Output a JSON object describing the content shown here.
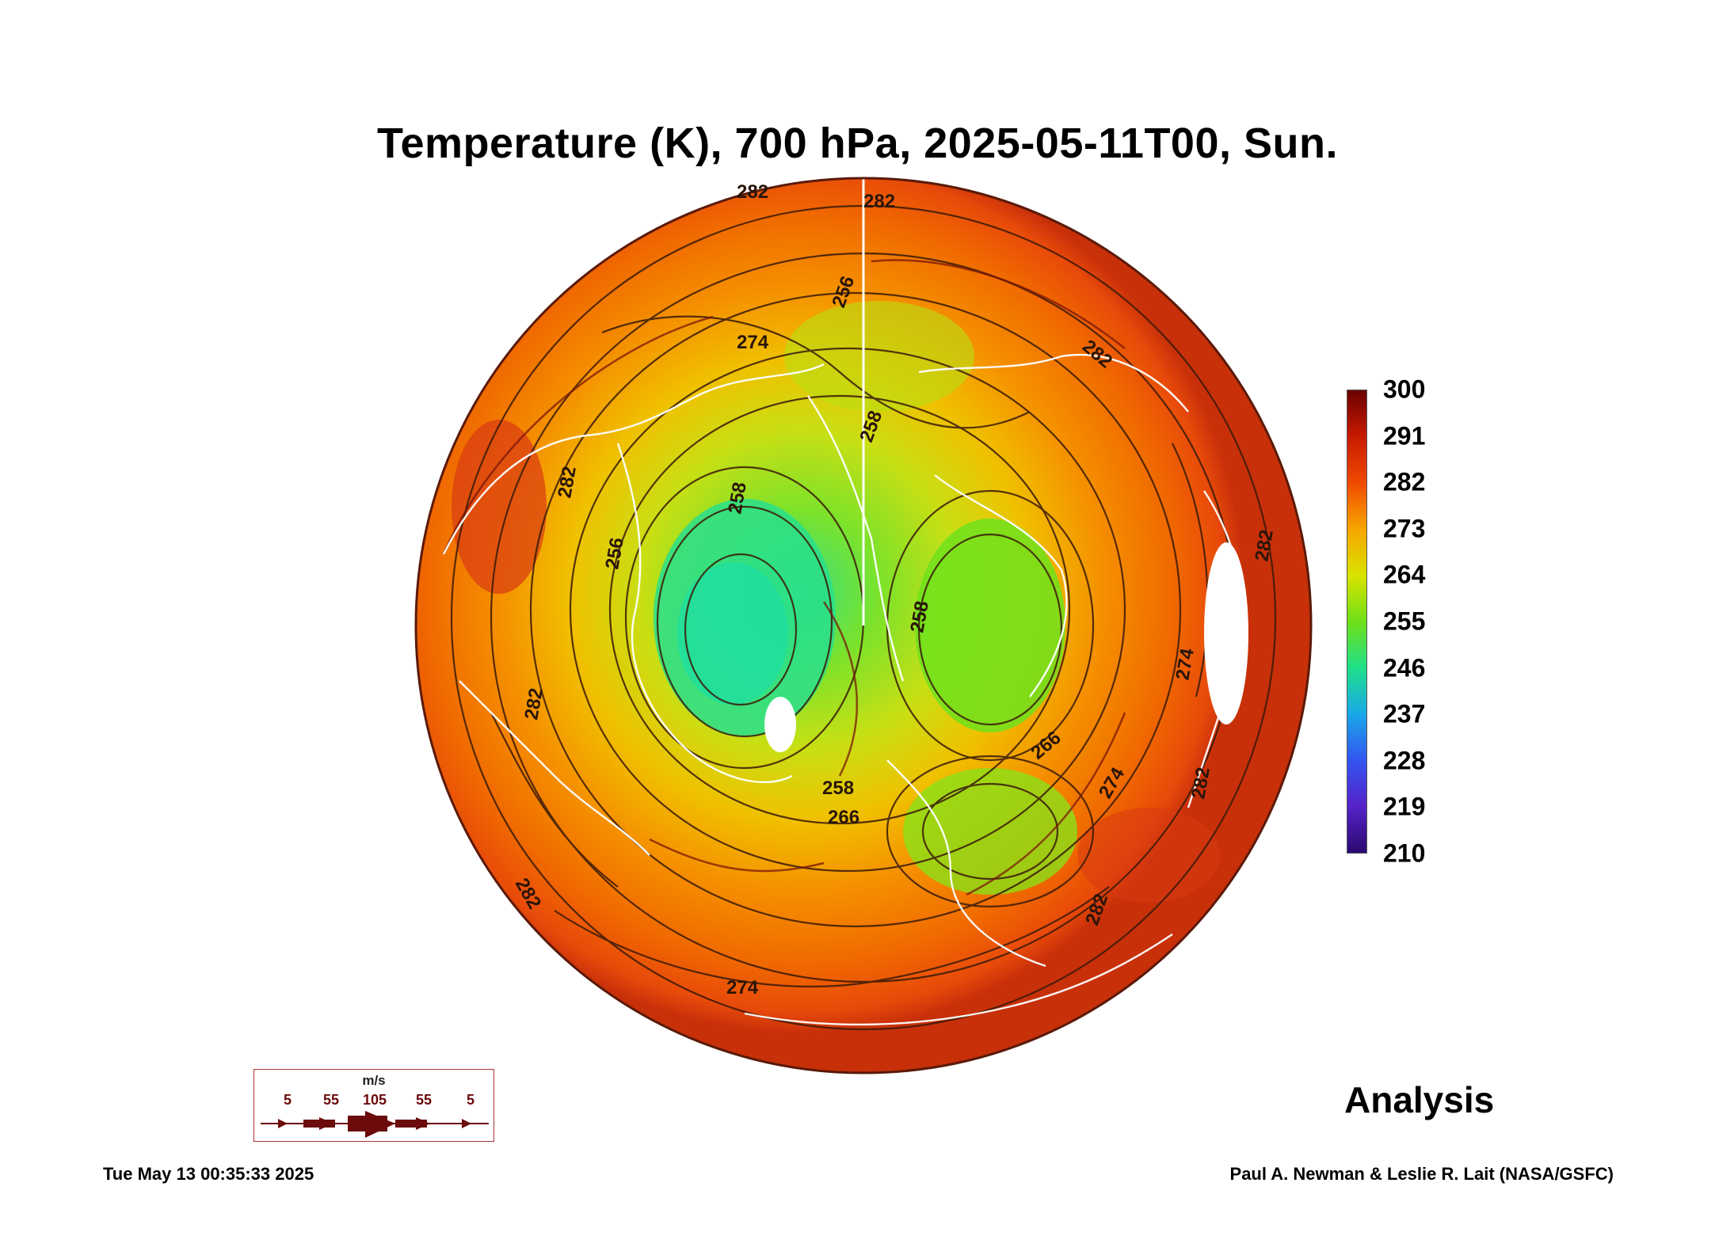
{
  "title": "Temperature (K), 700 hPa, 2025-05-11T00, Sun.",
  "colorbar": {
    "labels": [
      "300",
      "291",
      "282",
      "273",
      "264",
      "255",
      "246",
      "237",
      "228",
      "219",
      "210"
    ],
    "min": 210,
    "max": 300,
    "colors": [
      "#6b0000",
      "#c81a00",
      "#f04a00",
      "#f7a500",
      "#d9e300",
      "#6fe018",
      "#1fe08a",
      "#1aa8e8",
      "#3355f0",
      "#5522c8",
      "#2a0a70"
    ]
  },
  "contour_labels": [
    "282",
    "282",
    "256",
    "274",
    "258",
    "258",
    "282",
    "256",
    "258",
    "282",
    "274",
    "282",
    "266",
    "258",
    "266",
    "274",
    "282",
    "282",
    "274",
    "282",
    "282"
  ],
  "wind_legend": {
    "unit": "m/s",
    "values": [
      "5",
      "55",
      "105",
      "55",
      "5"
    ]
  },
  "analysis_label": "Analysis",
  "timestamp": "Tue May 13 00:35:33 2025",
  "credit": "Paul A. Newman & Leslie R. Lait (NASA/GSFC)"
}
